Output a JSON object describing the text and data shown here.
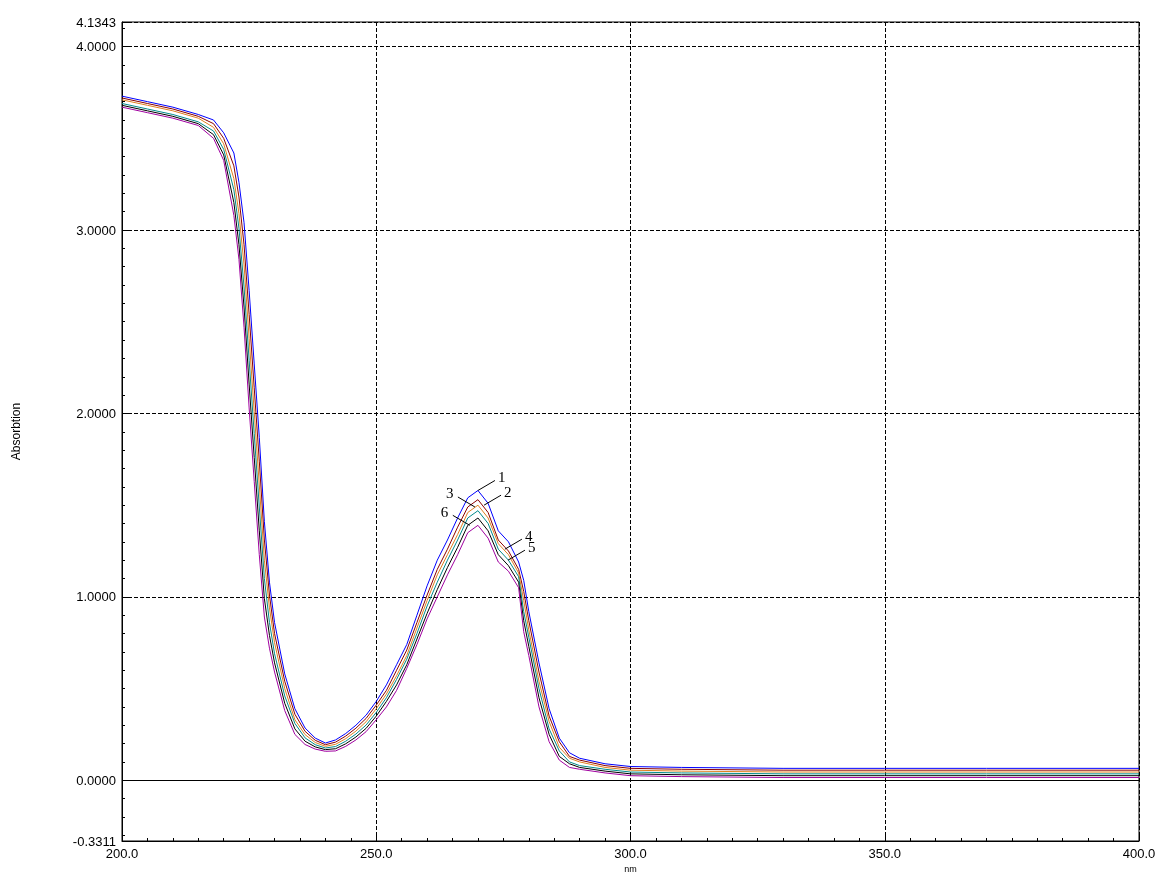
{
  "chart_data": {
    "type": "line",
    "xlabel": "nm",
    "ylabel": "Absorbtion",
    "x": [
      200,
      205,
      210,
      215,
      218,
      220,
      222,
      223,
      224,
      225,
      226,
      227,
      228,
      229,
      230,
      232,
      234,
      236,
      238,
      240,
      242,
      244,
      246,
      248,
      250,
      252,
      254,
      256,
      258,
      260,
      262,
      264,
      266,
      268,
      270,
      272,
      274,
      276,
      278,
      279,
      280,
      282,
      284,
      286,
      288,
      290,
      295,
      300,
      310,
      330,
      350,
      370,
      400
    ],
    "series": [
      {
        "color": "#0000ff",
        "values": [
          3.73,
          3.7,
          3.67,
          3.63,
          3.6,
          3.53,
          3.42,
          3.26,
          3.04,
          2.67,
          2.27,
          1.87,
          1.41,
          1.08,
          0.86,
          0.58,
          0.39,
          0.285,
          0.23,
          0.203,
          0.22,
          0.255,
          0.3,
          0.355,
          0.43,
          0.52,
          0.63,
          0.74,
          0.9,
          1.06,
          1.2,
          1.31,
          1.43,
          1.54,
          1.58,
          1.51,
          1.36,
          1.3,
          1.19,
          1.09,
          0.92,
          0.64,
          0.39,
          0.23,
          0.15,
          0.12,
          0.09,
          0.075,
          0.07,
          0.065,
          0.065,
          0.065,
          0.065
        ]
      },
      {
        "color": "#8b0000",
        "values": [
          3.72,
          3.69,
          3.66,
          3.62,
          3.58,
          3.5,
          3.35,
          3.18,
          2.92,
          2.54,
          2.14,
          1.74,
          1.31,
          1.01,
          0.8,
          0.54,
          0.36,
          0.267,
          0.218,
          0.194,
          0.208,
          0.241,
          0.284,
          0.337,
          0.41,
          0.49,
          0.6,
          0.71,
          0.86,
          1.01,
          1.15,
          1.26,
          1.38,
          1.49,
          1.53,
          1.46,
          1.31,
          1.25,
          1.15,
          1.03,
          0.87,
          0.59,
          0.35,
          0.21,
          0.13,
          0.11,
          0.08,
          0.065,
          0.06,
          0.055,
          0.055,
          0.055,
          0.055
        ]
      },
      {
        "color": "#e08020",
        "values": [
          3.71,
          3.68,
          3.65,
          3.61,
          3.56,
          3.47,
          3.28,
          3.09,
          2.81,
          2.41,
          2.01,
          1.61,
          1.2,
          0.94,
          0.75,
          0.5,
          0.33,
          0.249,
          0.206,
          0.185,
          0.196,
          0.227,
          0.268,
          0.319,
          0.39,
          0.47,
          0.57,
          0.68,
          0.83,
          0.98,
          1.12,
          1.23,
          1.34,
          1.46,
          1.5,
          1.43,
          1.29,
          1.23,
          1.13,
          0.98,
          0.82,
          0.54,
          0.32,
          0.18,
          0.12,
          0.1,
          0.07,
          0.055,
          0.05,
          0.045,
          0.045,
          0.045,
          0.045
        ]
      },
      {
        "color": "#008b8b",
        "values": [
          3.69,
          3.66,
          3.63,
          3.59,
          3.54,
          3.44,
          3.22,
          3.01,
          2.69,
          2.29,
          1.89,
          1.49,
          1.1,
          0.86,
          0.69,
          0.46,
          0.31,
          0.231,
          0.194,
          0.176,
          0.184,
          0.213,
          0.252,
          0.301,
          0.37,
          0.45,
          0.55,
          0.66,
          0.8,
          0.95,
          1.08,
          1.2,
          1.31,
          1.43,
          1.47,
          1.4,
          1.26,
          1.2,
          1.11,
          0.92,
          0.78,
          0.5,
          0.28,
          0.16,
          0.1,
          0.08,
          0.06,
          0.045,
          0.04,
          0.035,
          0.035,
          0.035,
          0.035
        ]
      },
      {
        "color": "#000000",
        "values": [
          3.68,
          3.65,
          3.62,
          3.58,
          3.52,
          3.41,
          3.15,
          2.92,
          2.58,
          2.16,
          1.76,
          1.36,
          0.99,
          0.79,
          0.64,
          0.42,
          0.28,
          0.213,
          0.182,
          0.167,
          0.172,
          0.199,
          0.236,
          0.283,
          0.35,
          0.43,
          0.52,
          0.63,
          0.77,
          0.91,
          1.04,
          1.16,
          1.27,
          1.39,
          1.43,
          1.36,
          1.23,
          1.17,
          1.08,
          0.87,
          0.73,
          0.45,
          0.25,
          0.13,
          0.09,
          0.07,
          0.05,
          0.035,
          0.03,
          0.025,
          0.025,
          0.025,
          0.025
        ]
      },
      {
        "color": "#a000a0",
        "values": [
          3.67,
          3.64,
          3.61,
          3.57,
          3.5,
          3.38,
          3.08,
          2.84,
          2.47,
          2.03,
          1.63,
          1.23,
          0.89,
          0.72,
          0.59,
          0.38,
          0.25,
          0.195,
          0.17,
          0.158,
          0.16,
          0.185,
          0.22,
          0.265,
          0.33,
          0.4,
          0.49,
          0.61,
          0.74,
          0.88,
          1.0,
          1.12,
          1.23,
          1.35,
          1.39,
          1.32,
          1.19,
          1.14,
          1.05,
          0.81,
          0.68,
          0.4,
          0.21,
          0.11,
          0.07,
          0.06,
          0.04,
          0.025,
          0.02,
          0.015,
          0.015,
          0.015,
          0.015
        ]
      }
    ],
    "annotations": [
      {
        "text": "1",
        "x": 270.0,
        "y": 1.58
      },
      {
        "text": "2",
        "x": 271.2,
        "y": 1.5
      },
      {
        "text": "3",
        "x": 269.4,
        "y": 1.49
      },
      {
        "text": "6",
        "x": 268.4,
        "y": 1.39
      },
      {
        "text": "4",
        "x": 275.3,
        "y": 1.26
      },
      {
        "text": "5",
        "x": 275.9,
        "y": 1.2
      }
    ],
    "xlim": [
      200,
      400
    ],
    "xticks": [
      {
        "value": 200,
        "label": "200.0"
      },
      {
        "value": 250,
        "label": "250.0"
      },
      {
        "value": 300,
        "label": "300.0"
      },
      {
        "value": 350,
        "label": "350.0"
      },
      {
        "value": 400,
        "label": "400.0"
      }
    ],
    "ylim": [
      -0.3311,
      4.1343
    ],
    "yticks": [
      {
        "value": -0.3311,
        "label": "-0.3311"
      },
      {
        "value": 0,
        "label": "0.0000"
      },
      {
        "value": 1,
        "label": "1.0000"
      },
      {
        "value": 2,
        "label": "2.0000"
      },
      {
        "value": 3,
        "label": "3.0000"
      },
      {
        "value": 4,
        "label": "4.0000"
      },
      {
        "value": 4.1343,
        "label": "4.1343"
      }
    ],
    "ref_lines": [
      {
        "axis": "y",
        "value": 0,
        "color": "#000000",
        "line_style": "solid"
      }
    ],
    "grid": true,
    "marker": "none",
    "line_style": "solid"
  }
}
